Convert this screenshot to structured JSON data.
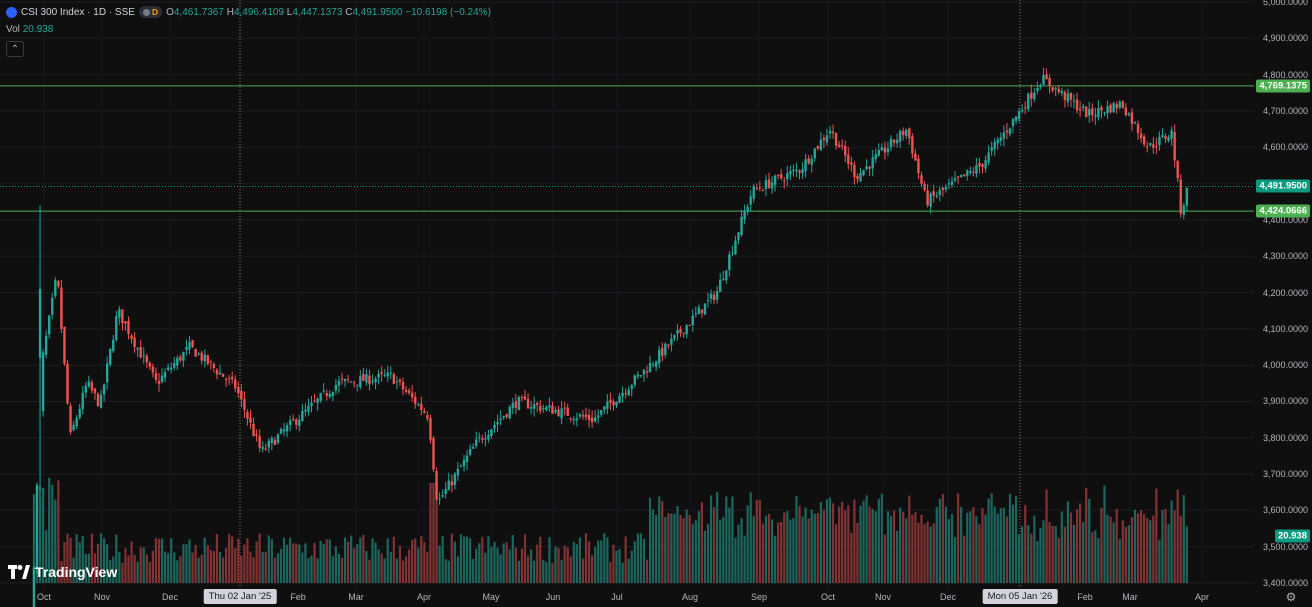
{
  "legend": {
    "symbol": "CSI 300 Index · 1D · SSE",
    "badge_letter": "D",
    "open_label": "O",
    "open": "4,461.7367",
    "high_label": "H",
    "high": "4,496.4109",
    "low_label": "L",
    "low": "4,447.1373",
    "close_label": "C",
    "close": "4,491.9500",
    "change": "−10.6198 (−0.24%)"
  },
  "volume": {
    "label": "Vol",
    "value": "20.938"
  },
  "price_axis": {
    "ticks": [
      "5,000.0000",
      "4,900.0000",
      "4,800.0000",
      "4,700.0000",
      "4,600.0000",
      "4,500.0000",
      "4,400.0000",
      "4,300.0000",
      "4,200.0000",
      "4,100.0000",
      "4,000.0000",
      "3,900.0000",
      "3,800.0000",
      "3,700.0000",
      "3,600.0000",
      "3,500.0000",
      "3,400.0000"
    ],
    "badges": [
      {
        "text": "4,769.1375",
        "color": "#4caf50"
      },
      {
        "text": "4,491.9500",
        "color": "#089981"
      },
      {
        "text": "4,424.0666",
        "color": "#4caf50"
      },
      {
        "text": "20.938",
        "color": "#089981"
      }
    ]
  },
  "time_axis": {
    "ticks": [
      "Oct",
      "Nov",
      "Dec",
      "Feb",
      "Mar",
      "Apr",
      "May",
      "Jun",
      "Jul",
      "Aug",
      "Sep",
      "Oct",
      "Nov",
      "Dec",
      "Feb",
      "Mar",
      "Apr"
    ],
    "crosshair_labels": [
      "Thu 02 Jan '25",
      "Mon 05 Jan '26"
    ]
  },
  "horizontal_lines": [
    4769.1375,
    4491.95,
    4424.0666
  ],
  "logo_text": "TradingView",
  "colors": {
    "up": "#26a69a",
    "down": "#ef5350",
    "hline": "#4caf50",
    "background": "#0f0f0f"
  },
  "chart_data": {
    "type": "candlestick",
    "title": "CSI 300 Index · 1D · SSE",
    "ylim": [
      3400,
      5000
    ],
    "price_path": [
      {
        "x": "Sep 24 '24",
        "y": 3250
      },
      {
        "x": "Sep 30 '24",
        "y": 4010
      },
      {
        "x": "Oct 8 '24",
        "y": 4250
      },
      {
        "x": "Oct 15 '24",
        "y": 3800
      },
      {
        "x": "Oct 24 '24",
        "y": 3950
      },
      {
        "x": "Oct 31 '24",
        "y": 3890
      },
      {
        "x": "Nov 8 '24",
        "y": 4150
      },
      {
        "x": "Nov 25 '24",
        "y": 3950
      },
      {
        "x": "Dec 10 '24",
        "y": 4050
      },
      {
        "x": "Dec 31 '24",
        "y": 3940
      },
      {
        "x": "Jan 13 '25",
        "y": 3760
      },
      {
        "x": "Jan 27 '25",
        "y": 3830
      },
      {
        "x": "Feb 20 '25",
        "y": 3950
      },
      {
        "x": "Mar 17 '25",
        "y": 3970
      },
      {
        "x": "Apr 3 '25",
        "y": 3860
      },
      {
        "x": "Apr 7 '25",
        "y": 3620
      },
      {
        "x": "Apr 25 '25",
        "y": 3790
      },
      {
        "x": "May 14 '25",
        "y": 3900
      },
      {
        "x": "Jun 20 '25",
        "y": 3850
      },
      {
        "x": "Jul 15 '25",
        "y": 4000
      },
      {
        "x": "Aug 13 '25",
        "y": 4200
      },
      {
        "x": "Aug 29 '25",
        "y": 4480
      },
      {
        "x": "Sep 19 '25",
        "y": 4540
      },
      {
        "x": "Oct 2 '25",
        "y": 4650
      },
      {
        "x": "Oct 17 '25",
        "y": 4520
      },
      {
        "x": "Nov 12 '25",
        "y": 4650
      },
      {
        "x": "Nov 21 '25",
        "y": 4450
      },
      {
        "x": "Dec 17 '25",
        "y": 4550
      },
      {
        "x": "Jan 5 '26",
        "y": 4700
      },
      {
        "x": "Jan 14 '26",
        "y": 4790
      },
      {
        "x": "Feb 3 '26",
        "y": 4690
      },
      {
        "x": "Feb 24 '26",
        "y": 4720
      },
      {
        "x": "Mar 9 '26",
        "y": 4600
      },
      {
        "x": "Mar 19 '26",
        "y": 4640
      },
      {
        "x": "Mar 23 '26",
        "y": 4420
      },
      {
        "x": "Mar 26 '26",
        "y": 4491.95
      }
    ]
  }
}
